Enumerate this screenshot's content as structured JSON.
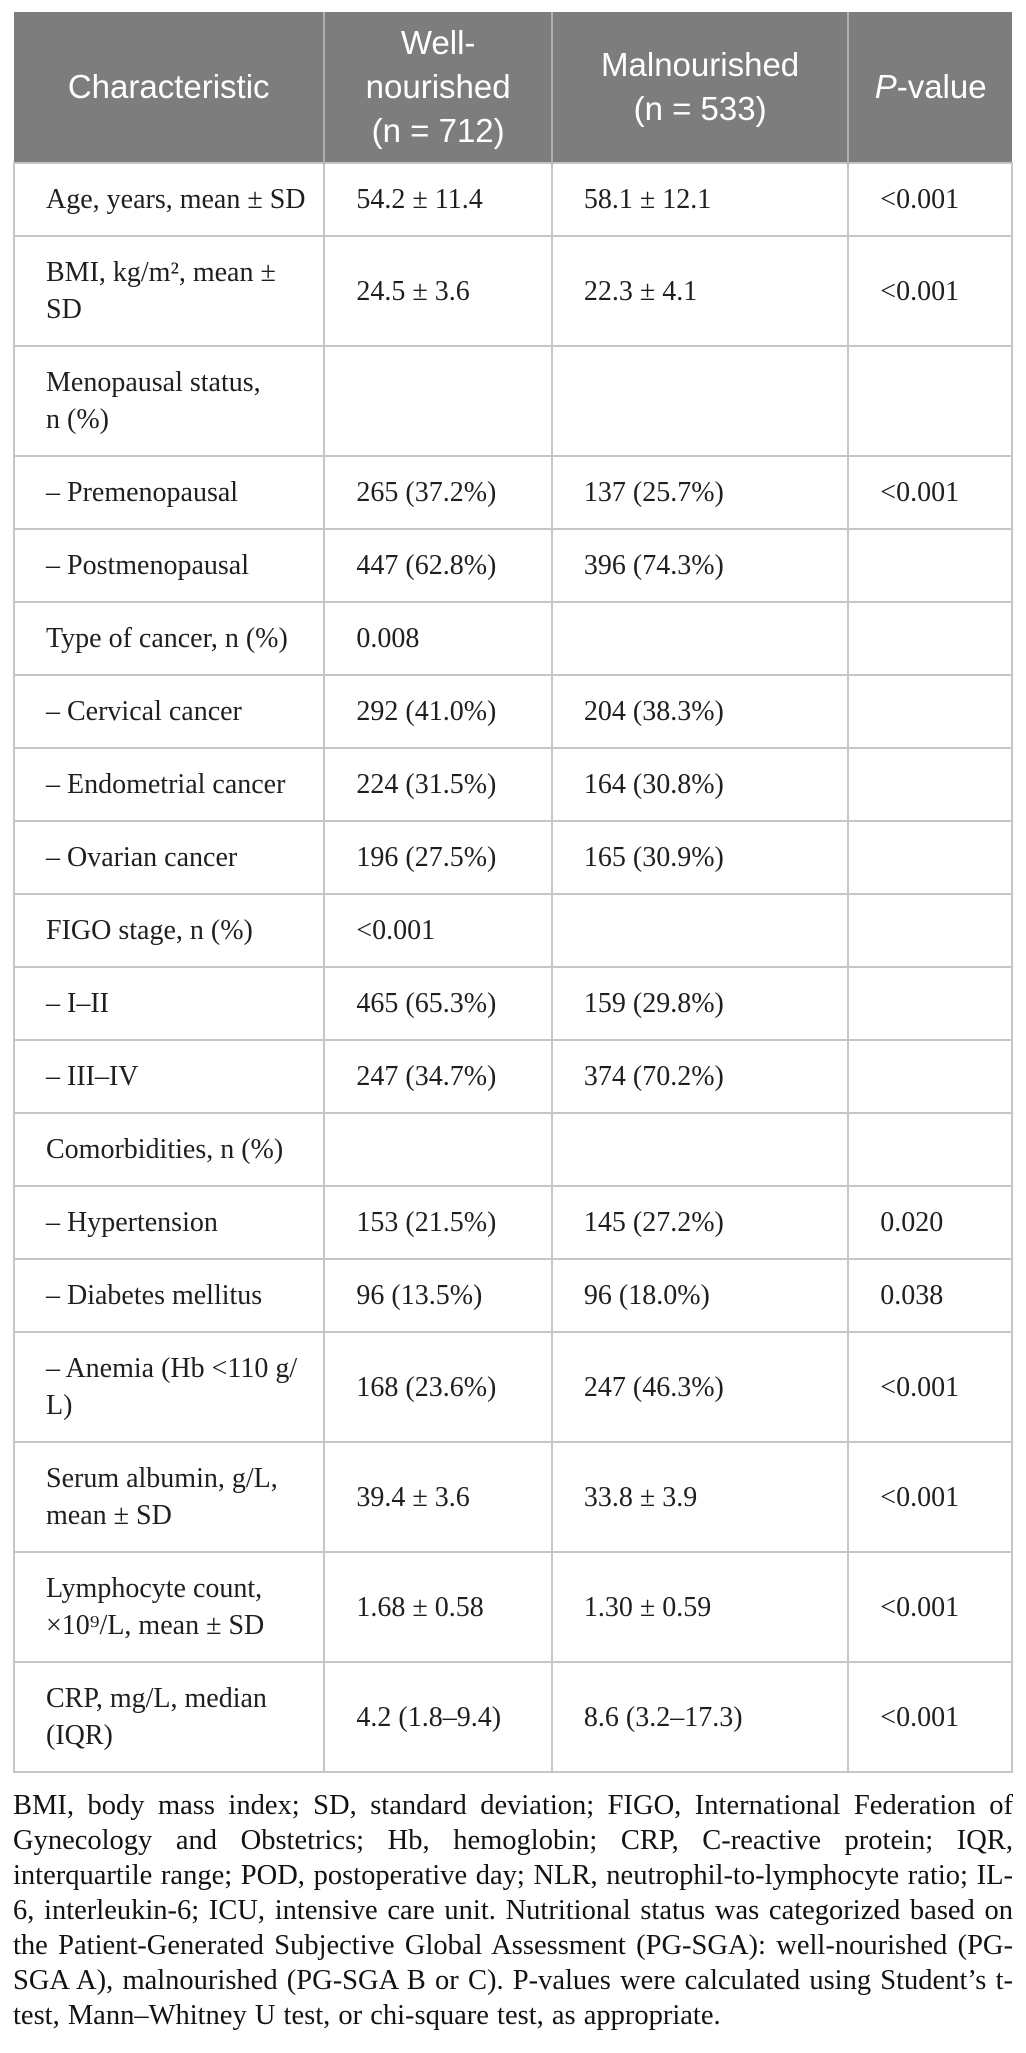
{
  "table": {
    "header": {
      "characteristic": "Characteristic",
      "well_nourished": "Well-\nnourished\n(n = 712)",
      "malnourished": "Malnourished\n(n = 533)",
      "p_label_italic": "P",
      "p_label_rest": "-value"
    },
    "rows": [
      {
        "label": "Age, years, mean ± SD",
        "well": "54.2 ± 11.4",
        "mal": "58.1 ± 12.1",
        "p": "<0.001"
      },
      {
        "label": "BMI, kg/m², mean ±\nSD",
        "well": "24.5 ± 3.6",
        "mal": "22.3 ± 4.1",
        "p": "<0.001"
      },
      {
        "label": "Menopausal status,\nn (%)",
        "well": "",
        "mal": "",
        "p": ""
      },
      {
        "label": "– Premenopausal",
        "well": "265 (37.2%)",
        "mal": "137 (25.7%)",
        "p": "<0.001"
      },
      {
        "label": "– Postmenopausal",
        "well": "447 (62.8%)",
        "mal": "396 (74.3%)",
        "p": ""
      },
      {
        "label": "Type of cancer, n (%)",
        "well": "0.008",
        "mal": "",
        "p": ""
      },
      {
        "label": "– Cervical cancer",
        "well": "292 (41.0%)",
        "mal": "204 (38.3%)",
        "p": ""
      },
      {
        "label": "– Endometrial cancer",
        "well": "224 (31.5%)",
        "mal": "164 (30.8%)",
        "p": ""
      },
      {
        "label": "– Ovarian cancer",
        "well": "196 (27.5%)",
        "mal": "165 (30.9%)",
        "p": ""
      },
      {
        "label": "FIGO stage, n (%)",
        "well": "<0.001",
        "mal": "",
        "p": ""
      },
      {
        "label": "– I–II",
        "well": "465 (65.3%)",
        "mal": "159 (29.8%)",
        "p": ""
      },
      {
        "label": "– III–IV",
        "well": "247 (34.7%)",
        "mal": "374 (70.2%)",
        "p": ""
      },
      {
        "label": "Comorbidities, n (%)",
        "well": "",
        "mal": "",
        "p": ""
      },
      {
        "label": "– Hypertension",
        "well": "153 (21.5%)",
        "mal": "145 (27.2%)",
        "p": "0.020"
      },
      {
        "label": "– Diabetes mellitus",
        "well": "96 (13.5%)",
        "mal": "96 (18.0%)",
        "p": "0.038"
      },
      {
        "label": "– Anemia (Hb <110 g/\nL)",
        "well": "168 (23.6%)",
        "mal": "247 (46.3%)",
        "p": "<0.001"
      },
      {
        "label": "Serum albumin, g/L,\nmean ± SD",
        "well": "39.4 ± 3.6",
        "mal": "33.8 ± 3.9",
        "p": "<0.001"
      },
      {
        "label": "Lymphocyte count,\n×10⁹/L, mean ± SD",
        "well": "1.68 ± 0.58",
        "mal": "1.30 ± 0.59",
        "p": "<0.001"
      },
      {
        "label": "CRP, mg/L, median\n(IQR)",
        "well": "4.2 (1.8–9.4)",
        "mal": "8.6 (3.2–17.3)",
        "p": "<0.001"
      }
    ],
    "footnote": "BMI, body mass index; SD, standard deviation; FIGO, International Federation of Gynecology and Obstetrics; Hb, hemoglobin; CRP, C-reactive protein; IQR, interquartile range; POD, postoperative day; NLR, neutrophil-to-lymphocyte ratio; IL-6, interleukin-6; ICU, intensive care unit. Nutritional status was categorized based on the Patient-Generated Subjective Global Assessment (PG-SGA): well-nourished (PG-SGA A), malnourished (PG-SGA B or C). P-values were calculated using Student’s t-test, Mann–Whitney U test, or chi-square test, as appropriate.",
    "colors": {
      "header_background": "#7d7d7d",
      "header_text": "#ffffff",
      "body_border": "#c6c6c6",
      "body_text": "#1f1f1f"
    }
  }
}
